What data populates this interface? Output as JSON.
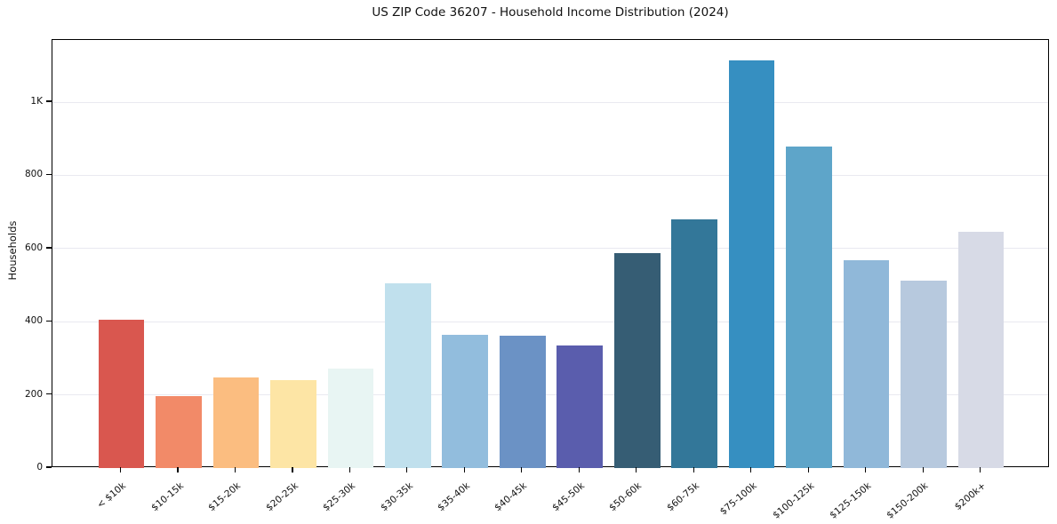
{
  "figure": {
    "title": "US ZIP Code 36207 - Household Income Distribution (2024)"
  },
  "chart_data": {
    "type": "bar",
    "title": "US ZIP Code 36207 - Household Income Distribution (2024)",
    "xlabel": "",
    "ylabel": "Households",
    "categories": [
      "< $10k",
      "$10-15k",
      "$15-20k",
      "$20-25k",
      "$25-30k",
      "$30-35k",
      "$35-40k",
      "$40-45k",
      "$45-50k",
      "$50-60k",
      "$60-75k",
      "$75-100k",
      "$100-125k",
      "$125-150k",
      "$150-200k",
      "$200k+"
    ],
    "values": [
      405,
      197,
      248,
      240,
      272,
      505,
      365,
      362,
      334,
      588,
      680,
      1115,
      878,
      568,
      513,
      645
    ],
    "bar_colors": [
      "#d9574f",
      "#f28a68",
      "#fbbd80",
      "#fde5a5",
      "#e8f5f3",
      "#c0e0ed",
      "#92bddd",
      "#6b92c5",
      "#5a5dad",
      "#365d74",
      "#337799",
      "#368fc1",
      "#5ea5c9",
      "#90b8d9",
      "#b7c9de",
      "#d7dae6"
    ],
    "ylim": [
      0,
      1170
    ],
    "yticks": {
      "values": [
        0,
        200,
        400,
        600,
        800,
        1000
      ],
      "labels": [
        "0",
        "200",
        "400",
        "600",
        "800",
        "1K"
      ]
    },
    "grid": "horizontal",
    "grid_color": "#e9e9f0",
    "axis_color": "#000000",
    "background": "#ffffff",
    "x_tick_rotation_deg": 40,
    "legend": "none"
  }
}
